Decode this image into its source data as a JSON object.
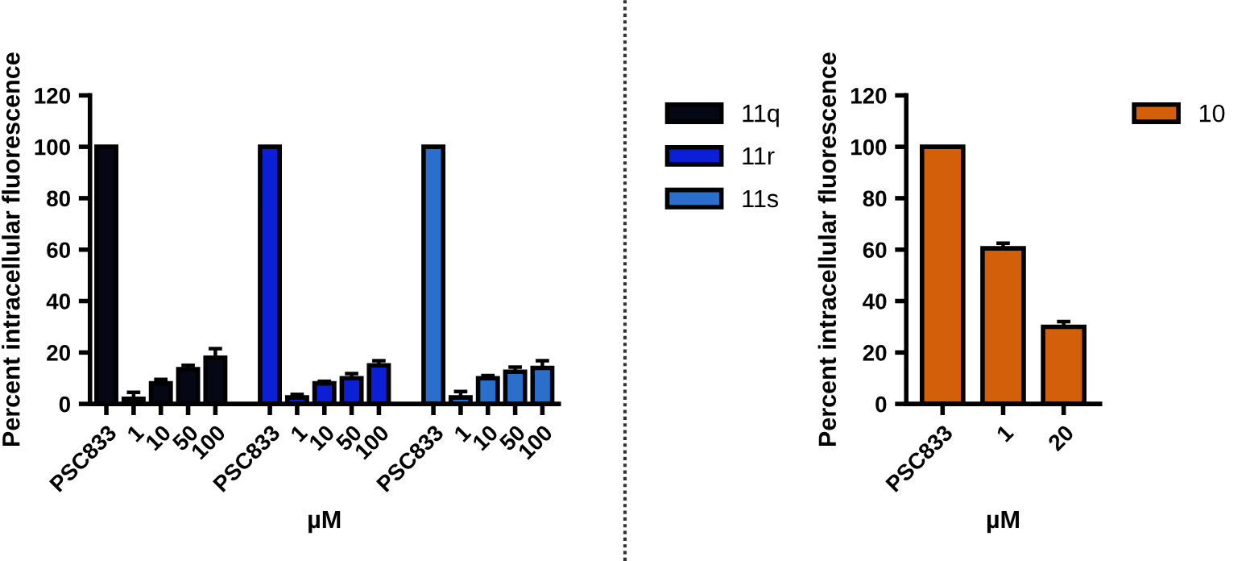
{
  "chart_data": [
    {
      "type": "bar",
      "ylabel": "Percent intracellular fluorescence",
      "xlabel": "µM",
      "categories": [
        "PSC833",
        "1",
        "10",
        "50",
        "100",
        null,
        "PSC833",
        "1",
        "10",
        "50",
        "100",
        null,
        "PSC833",
        "1",
        "10",
        "50",
        "100"
      ],
      "ylim": [
        0,
        120
      ],
      "yticks": [
        0,
        20,
        40,
        60,
        80,
        100,
        120
      ],
      "legend": "top right",
      "grid": false,
      "series": [
        {
          "name": "11q",
          "color": "#050814",
          "values": [
            100,
            2,
            8,
            13.5,
            18,
            null,
            null,
            null,
            null,
            null,
            null,
            null,
            null,
            null,
            null,
            null,
            null
          ],
          "errors": [
            null,
            2.5,
            1.5,
            1.5,
            3.5,
            null,
            null,
            null,
            null,
            null,
            null,
            null,
            null,
            null,
            null,
            null,
            null
          ]
        },
        {
          "name": "11r",
          "color": "#0a1fd6",
          "values": [
            null,
            null,
            null,
            null,
            null,
            null,
            100,
            2.5,
            8,
            10,
            15,
            null,
            null,
            null,
            null,
            null,
            null
          ],
          "errors": [
            null,
            null,
            null,
            null,
            null,
            null,
            null,
            1.2,
            0.8,
            1.8,
            1.8,
            null,
            null,
            null,
            null,
            null,
            null
          ]
        },
        {
          "name": "11s",
          "color": "#2a6fcc",
          "values": [
            null,
            null,
            null,
            null,
            null,
            null,
            null,
            null,
            null,
            null,
            null,
            null,
            100,
            2.5,
            10,
            12.5,
            14
          ],
          "errors": [
            null,
            null,
            null,
            null,
            null,
            null,
            null,
            null,
            null,
            null,
            null,
            null,
            null,
            2.3,
            1,
            1.8,
            2.8
          ]
        }
      ]
    },
    {
      "type": "bar",
      "ylabel": "Percent intracellular fluorescence",
      "xlabel": "µM",
      "categories": [
        "PSC833",
        "1",
        "20"
      ],
      "ylim": [
        0,
        120
      ],
      "yticks": [
        0,
        20,
        40,
        60,
        80,
        100,
        120
      ],
      "legend": "top right",
      "grid": false,
      "series": [
        {
          "name": "10",
          "color": "#d45f0a",
          "values": [
            100,
            60.5,
            30
          ],
          "errors": [
            null,
            2,
            2
          ]
        }
      ]
    }
  ]
}
